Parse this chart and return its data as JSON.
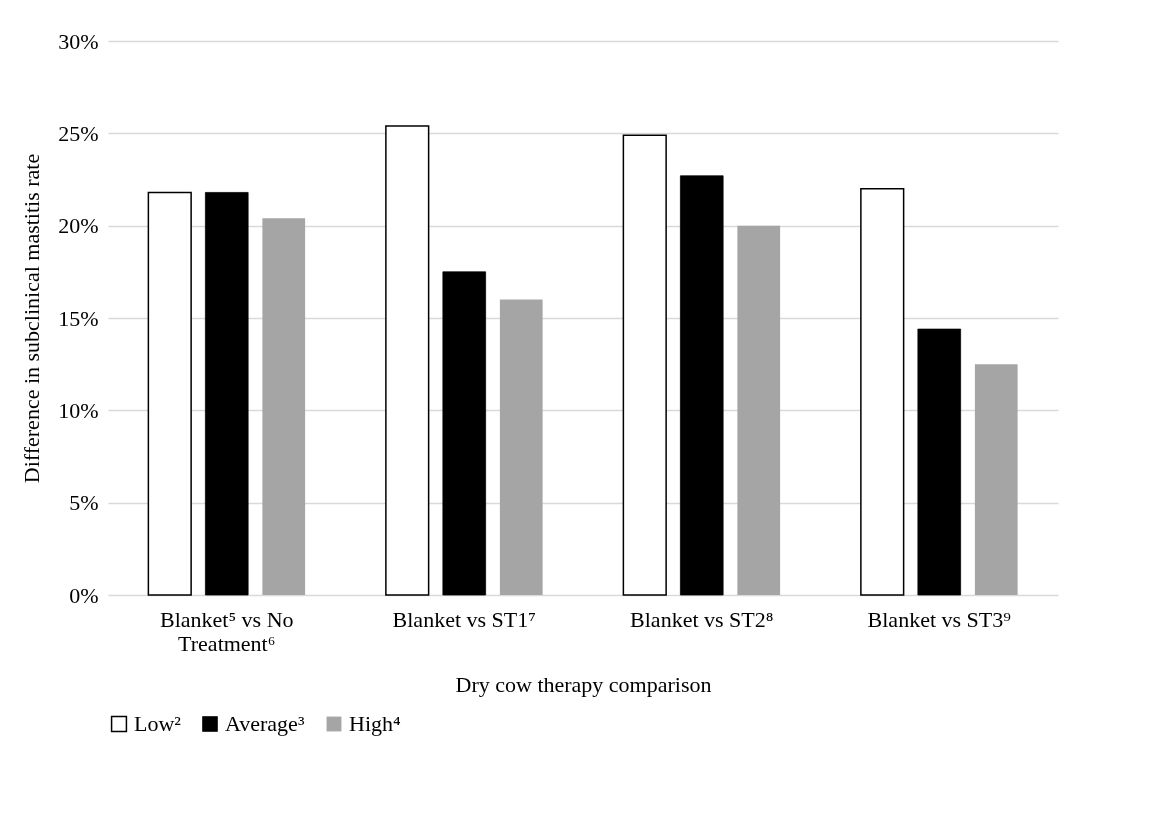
{
  "chart_data": {
    "type": "bar",
    "xlabel": "Dry cow therapy comparison",
    "ylabel": "Difference in subclinical mastitis rate",
    "categories": [
      "Blanket⁵ vs No Treatment⁶",
      "Blanket vs ST1⁷",
      "Blanket vs ST2⁸",
      "Blanket vs ST3⁹"
    ],
    "series": [
      {
        "name": "Low²",
        "color": "#ffffff",
        "values": [
          21.8,
          25.4,
          24.9,
          22.0
        ]
      },
      {
        "name": "Average³",
        "color": "#000000",
        "values": [
          21.8,
          17.5,
          22.7,
          14.4
        ]
      },
      {
        "name": "High⁴",
        "color": "#a5a5a5",
        "values": [
          20.4,
          16.0,
          20.0,
          12.5
        ]
      }
    ],
    "ylim": [
      0,
      30
    ],
    "yticks": [
      {
        "value": 0,
        "label": "0%"
      },
      {
        "value": 5,
        "label": "5%"
      },
      {
        "value": 10,
        "label": "10%"
      },
      {
        "value": 15,
        "label": "15%"
      },
      {
        "value": 20,
        "label": "20%"
      },
      {
        "value": 25,
        "label": "25%"
      },
      {
        "value": 30,
        "label": "30%"
      }
    ],
    "grid": "y",
    "legend": "bottom"
  }
}
